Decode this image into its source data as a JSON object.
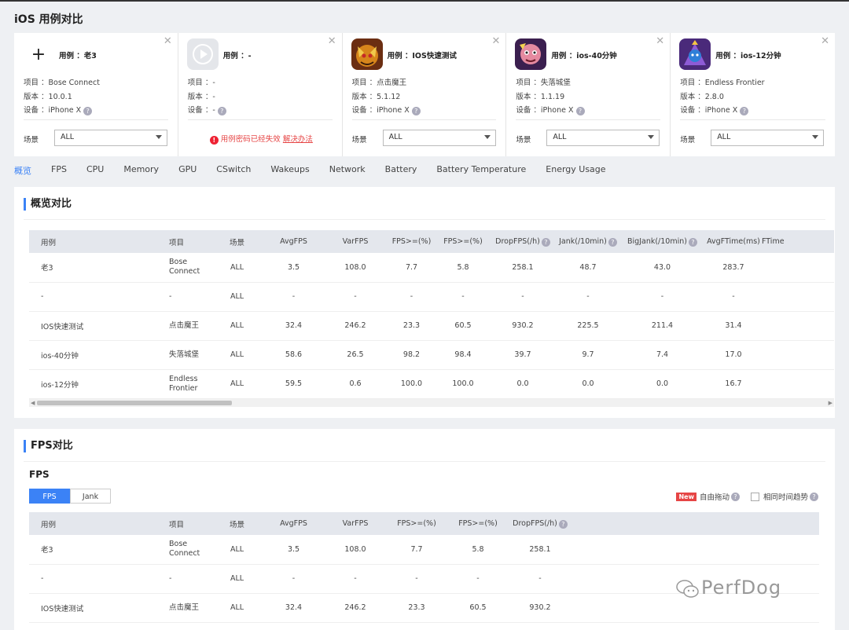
{
  "page_title": "iOS 用例对比",
  "cases": [
    {
      "name_label": "用例 ：老3",
      "project": "项目 ：Bose Connect",
      "version": "版本 ：10.0.1",
      "device": "设备 ：iPhone X",
      "scene_label": "场景",
      "scene_value": "ALL",
      "icon": "plus-icon"
    },
    {
      "name_label": "用例 ：-",
      "project": "项目 ：-",
      "version": "版本 ：-",
      "device": "设备 ：-",
      "error_text": "用例密码已经失效",
      "error_link": "解决办法",
      "icon": "app-placeholder-icon"
    },
    {
      "name_label": "用例 ：IOS快速测试",
      "project": "项目 ：点击魔王",
      "version": "版本 ：5.1.12",
      "device": "设备 ：iPhone X",
      "scene_label": "场景",
      "scene_value": "ALL",
      "icon": "dragon-game-icon"
    },
    {
      "name_label": "用例 ：ios-40分钟",
      "project": "项目 ：失落城堡",
      "version": "版本 ：1.1.19",
      "device": "设备 ：iPhone X",
      "scene_label": "场景",
      "scene_value": "ALL",
      "icon": "castle-game-icon"
    },
    {
      "name_label": "用例 ：ios-12分钟",
      "project": "项目 ：Endless Frontier",
      "version": "版本 ：2.8.0",
      "device": "设备 ：iPhone X",
      "scene_label": "场景",
      "scene_value": "ALL",
      "icon": "frontier-game-icon"
    }
  ],
  "tabs": [
    "概览",
    "FPS",
    "CPU",
    "Memory",
    "GPU",
    "CSwitch",
    "Wakeups",
    "Network",
    "Battery",
    "Battery Temperature",
    "Energy Usage"
  ],
  "overview": {
    "title": "概览对比",
    "headers": [
      "用例",
      "项目",
      "场景",
      "AvgFPS",
      "VarFPS",
      "FPS>=(%)",
      "FPS>=(%)",
      "DropFPS(/h)",
      "Jank(/10min)",
      "BigJank(/10min)",
      "AvgFTime(ms)",
      "FTime"
    ],
    "rows": [
      [
        "老3",
        "Bose Connect",
        "ALL",
        "3.5",
        "108.0",
        "7.7",
        "5.8",
        "258.1",
        "48.7",
        "43.0",
        "283.7",
        ""
      ],
      [
        "-",
        "-",
        "ALL",
        "-",
        "-",
        "-",
        "-",
        "-",
        "-",
        "-",
        "-",
        ""
      ],
      [
        "IOS快速测试",
        "点击魔王",
        "ALL",
        "32.4",
        "246.2",
        "23.3",
        "60.5",
        "930.2",
        "225.5",
        "211.4",
        "31.4",
        ""
      ],
      [
        "ios-40分钟",
        "失落城堡",
        "ALL",
        "58.6",
        "26.5",
        "98.2",
        "98.4",
        "39.7",
        "9.7",
        "7.4",
        "17.0",
        ""
      ],
      [
        "ios-12分钟",
        "Endless Frontier",
        "ALL",
        "59.5",
        "0.6",
        "100.0",
        "100.0",
        "0.0",
        "0.0",
        "0.0",
        "16.7",
        ""
      ]
    ]
  },
  "fps": {
    "title": "FPS对比",
    "subtitle": "FPS",
    "toggle": [
      "FPS",
      "Jank"
    ],
    "new_badge": "New",
    "drag_label": "自由拖动",
    "same_time_label": "相同时间趋势",
    "headers": [
      "用例",
      "项目",
      "场景",
      "AvgFPS",
      "VarFPS",
      "FPS>=(%)",
      "FPS>=(%)",
      "DropFPS(/h)"
    ],
    "rows": [
      [
        "老3",
        "Bose Connect",
        "ALL",
        "3.5",
        "108.0",
        "7.7",
        "5.8",
        "258.1"
      ],
      [
        "-",
        "-",
        "ALL",
        "-",
        "-",
        "-",
        "-",
        "-"
      ],
      [
        "IOS快速测试",
        "点击魔王",
        "ALL",
        "32.4",
        "246.2",
        "23.3",
        "60.5",
        "930.2"
      ]
    ]
  },
  "watermark": "PerfDog",
  "colors": {
    "accent": "#3b82f6",
    "error": "#e64545"
  }
}
